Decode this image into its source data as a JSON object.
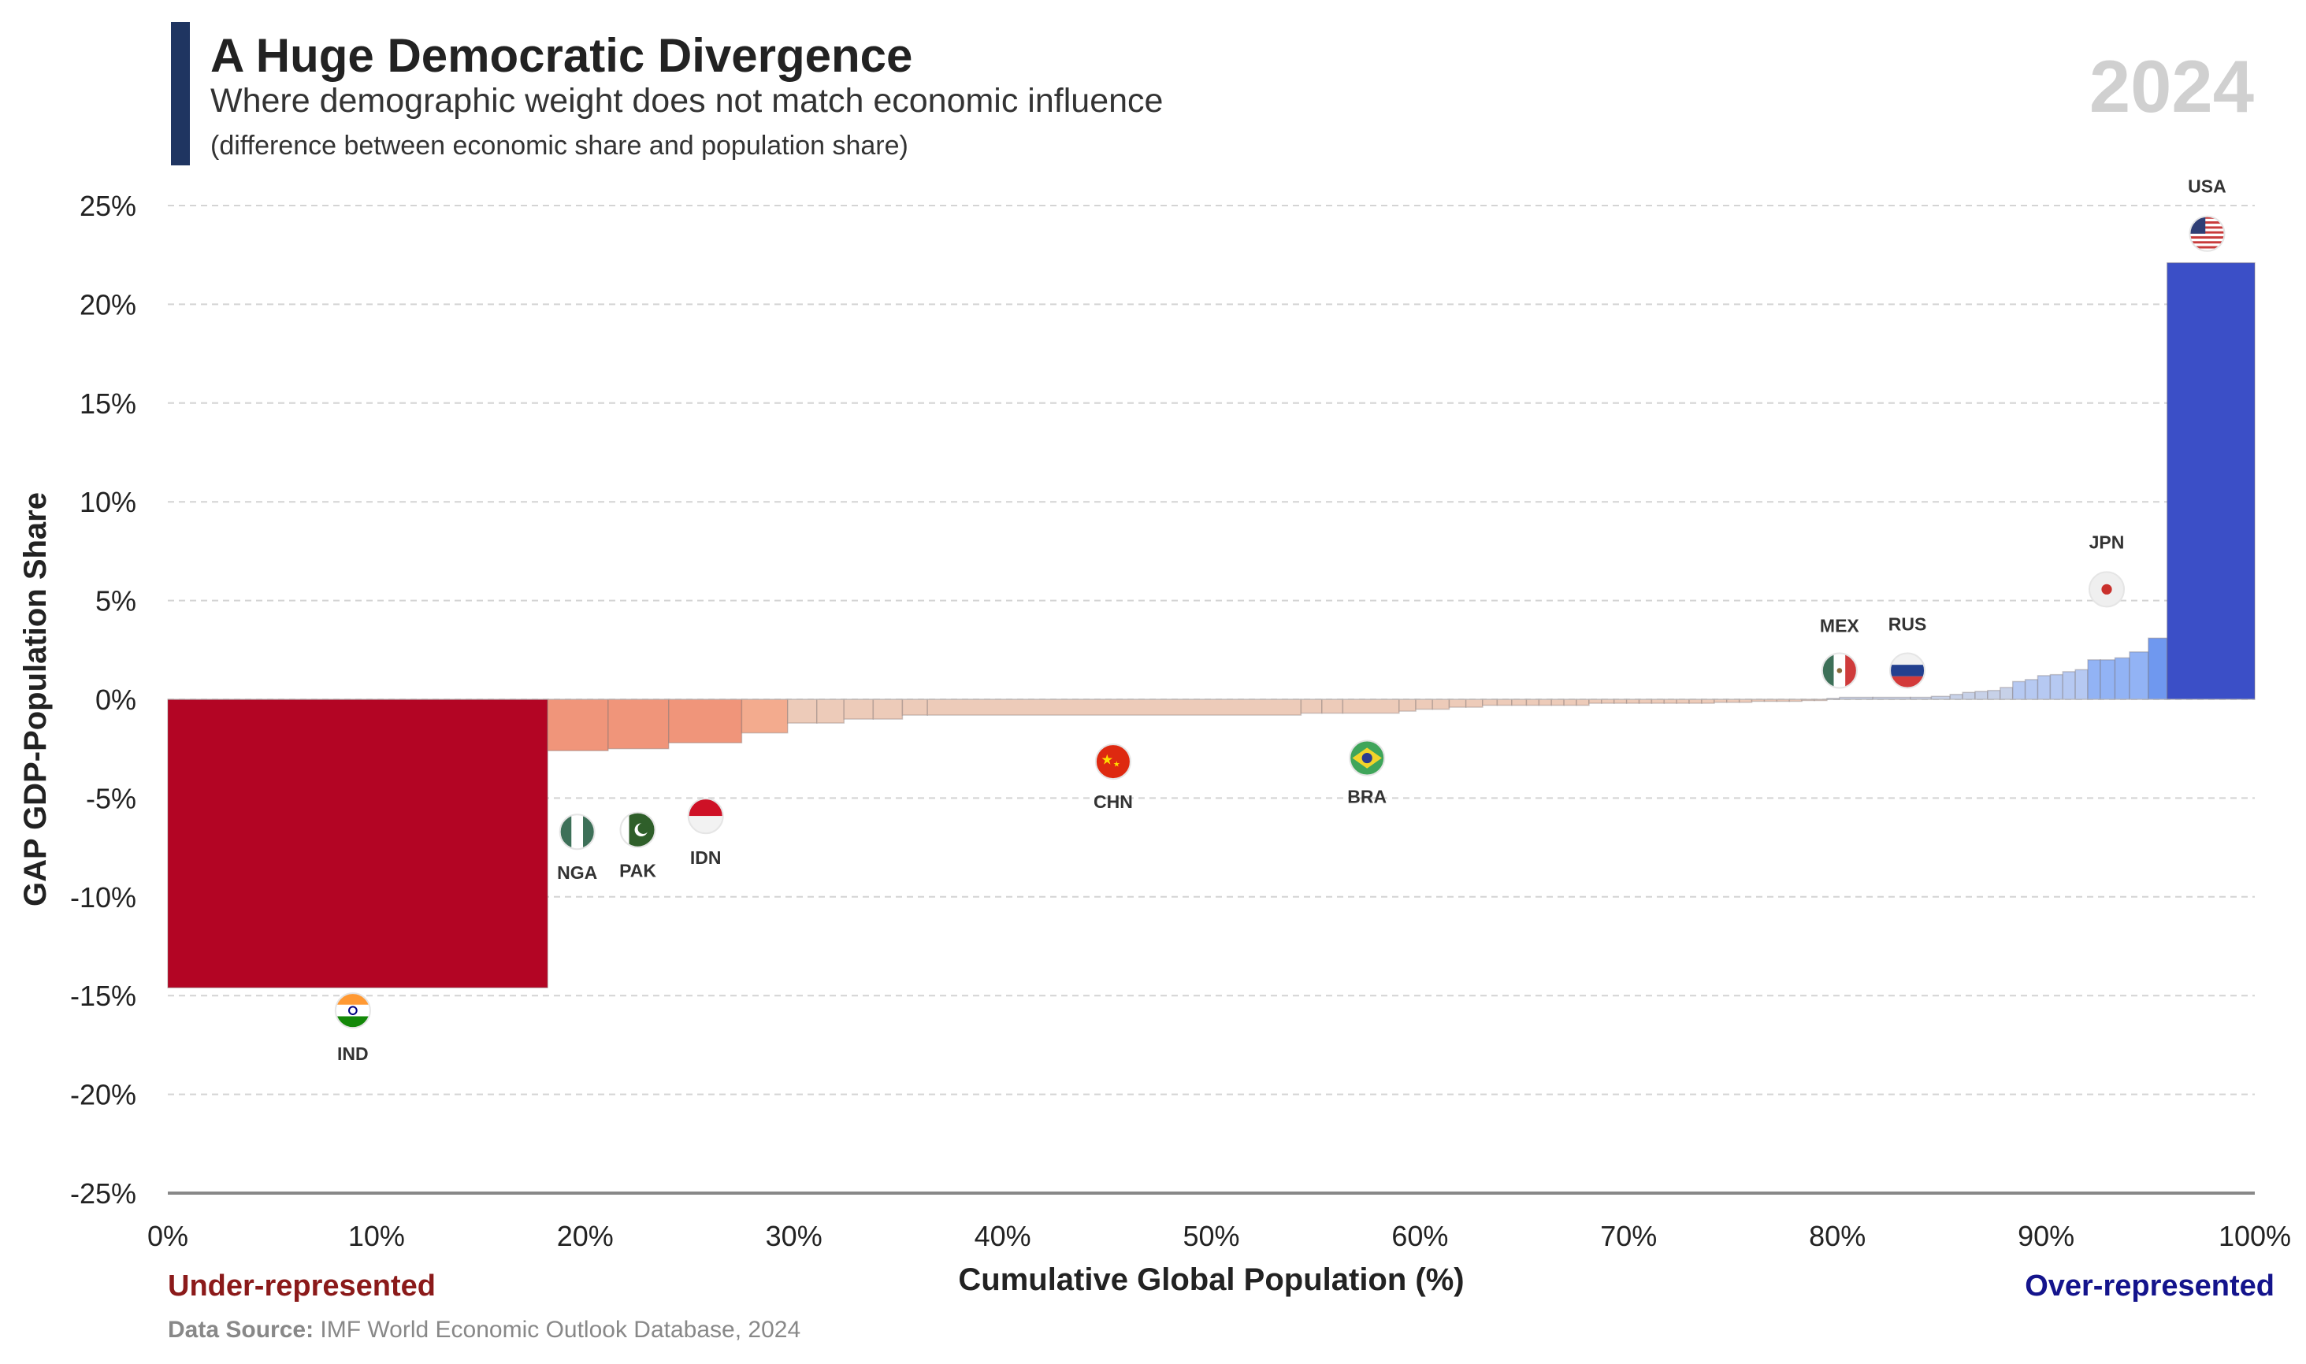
{
  "header": {
    "title": "A Huge Democratic Divergence",
    "subtitle": "Where demographic weight does not match economic influence",
    "note": "(difference between economic share and population share)",
    "year": "2024"
  },
  "footer": {
    "under_label": "Under-represented",
    "over_label": "Over-represented",
    "source_prefix": "Data Source:",
    "source_text": "IMF World Economic Outlook Database, 2024"
  },
  "colors": {
    "negative_strong": "#b30524",
    "negative_mid": "#f0957a",
    "negative_light": "#edcbb9",
    "positive_light": "#c7d1e8",
    "positive_mid": "#92b3f5",
    "positive_strong": "#3b4fc7",
    "accent": "#1f3561"
  },
  "chart_data": {
    "type": "bar",
    "variant": "variable-width (marimekko) bars",
    "xlabel": "Cumulative Global Population (%)",
    "ylabel": "GAP GDP-Population Share",
    "xlim": [
      0,
      100
    ],
    "ylim": [
      -25,
      25
    ],
    "x_ticks": [
      "0%",
      "10%",
      "20%",
      "30%",
      "40%",
      "50%",
      "60%",
      "70%",
      "80%",
      "90%",
      "100%"
    ],
    "y_ticks": [
      "25%",
      "20%",
      "15%",
      "10%",
      "5%",
      "0%",
      "-5%",
      "-10%",
      "-15%",
      "-20%",
      "-25%"
    ],
    "grid": "horizontal dashed",
    "bars": [
      {
        "x0": 0,
        "x1": 18.2,
        "gap": -14.6,
        "label": "IND",
        "flag": "india-flag"
      },
      {
        "x0": 18.2,
        "x1": 21.1,
        "gap": -2.6,
        "label": "NGA",
        "flag": "nigeria-flag"
      },
      {
        "x0": 21.1,
        "x1": 24.0,
        "gap": -2.5,
        "label": "PAK",
        "flag": "pakistan-flag"
      },
      {
        "x0": 24.0,
        "x1": 27.5,
        "gap": -2.2,
        "label": "IDN",
        "flag": "indonesia-flag"
      },
      {
        "x0": 27.5,
        "x1": 29.7,
        "gap": -1.7
      },
      {
        "x0": 29.7,
        "x1": 31.1,
        "gap": -1.2
      },
      {
        "x0": 31.1,
        "x1": 32.4,
        "gap": -1.2
      },
      {
        "x0": 32.4,
        "x1": 33.8,
        "gap": -1.0
      },
      {
        "x0": 33.8,
        "x1": 35.2,
        "gap": -1.0
      },
      {
        "x0": 35.2,
        "x1": 36.4,
        "gap": -0.8
      },
      {
        "x0": 36.4,
        "x1": 54.3,
        "gap": -0.8,
        "label": "CHN",
        "flag": "china-flag"
      },
      {
        "x0": 54.3,
        "x1": 55.3,
        "gap": -0.7
      },
      {
        "x0": 55.3,
        "x1": 56.3,
        "gap": -0.7
      },
      {
        "x0": 56.3,
        "x1": 59.0,
        "gap": -0.7,
        "label": "BRA",
        "flag": "brazil-flag"
      },
      {
        "x0": 59.0,
        "x1": 59.8,
        "gap": -0.6
      },
      {
        "x0": 59.8,
        "x1": 60.6,
        "gap": -0.5
      },
      {
        "x0": 60.6,
        "x1": 61.4,
        "gap": -0.5
      },
      {
        "x0": 61.4,
        "x1": 62.2,
        "gap": -0.4
      },
      {
        "x0": 62.2,
        "x1": 63.0,
        "gap": -0.4
      },
      {
        "x0": 63.0,
        "x1": 63.7,
        "gap": -0.3
      },
      {
        "x0": 63.7,
        "x1": 64.4,
        "gap": -0.3
      },
      {
        "x0": 64.4,
        "x1": 65.1,
        "gap": -0.3
      },
      {
        "x0": 65.1,
        "x1": 65.7,
        "gap": -0.3
      },
      {
        "x0": 65.7,
        "x1": 66.3,
        "gap": -0.3
      },
      {
        "x0": 66.3,
        "x1": 66.9,
        "gap": -0.3
      },
      {
        "x0": 66.9,
        "x1": 67.5,
        "gap": -0.3
      },
      {
        "x0": 67.5,
        "x1": 68.1,
        "gap": -0.3
      },
      {
        "x0": 68.1,
        "x1": 68.7,
        "gap": -0.2
      },
      {
        "x0": 68.7,
        "x1": 69.3,
        "gap": -0.2
      },
      {
        "x0": 69.3,
        "x1": 69.9,
        "gap": -0.2
      },
      {
        "x0": 69.9,
        "x1": 70.5,
        "gap": -0.2
      },
      {
        "x0": 70.5,
        "x1": 71.1,
        "gap": -0.2
      },
      {
        "x0": 71.1,
        "x1": 71.7,
        "gap": -0.2
      },
      {
        "x0": 71.7,
        "x1": 72.3,
        "gap": -0.2
      },
      {
        "x0": 72.3,
        "x1": 72.9,
        "gap": -0.2
      },
      {
        "x0": 72.9,
        "x1": 73.5,
        "gap": -0.2
      },
      {
        "x0": 73.5,
        "x1": 74.1,
        "gap": -0.2
      },
      {
        "x0": 74.1,
        "x1": 74.7,
        "gap": -0.15
      },
      {
        "x0": 74.7,
        "x1": 75.3,
        "gap": -0.15
      },
      {
        "x0": 75.3,
        "x1": 75.9,
        "gap": -0.15
      },
      {
        "x0": 75.9,
        "x1": 76.5,
        "gap": -0.1
      },
      {
        "x0": 76.5,
        "x1": 77.1,
        "gap": -0.1
      },
      {
        "x0": 77.1,
        "x1": 77.7,
        "gap": -0.1
      },
      {
        "x0": 77.7,
        "x1": 78.3,
        "gap": -0.1
      },
      {
        "x0": 78.3,
        "x1": 78.9,
        "gap": -0.05
      },
      {
        "x0": 78.9,
        "x1": 79.5,
        "gap": -0.05
      },
      {
        "x0": 79.5,
        "x1": 80.1,
        "gap": 0.05
      },
      {
        "x0": 80.1,
        "x1": 81.7,
        "gap": 0.1,
        "label": "MEX",
        "flag": "mexico-flag"
      },
      {
        "x0": 81.7,
        "x1": 83.5,
        "gap": 0.1,
        "label": "RUS",
        "flag": "russia-flag"
      },
      {
        "x0": 83.5,
        "x1": 84.5,
        "gap": 0.1
      },
      {
        "x0": 84.5,
        "x1": 85.4,
        "gap": 0.15
      },
      {
        "x0": 85.4,
        "x1": 86.0,
        "gap": 0.25
      },
      {
        "x0": 86.0,
        "x1": 86.6,
        "gap": 0.35
      },
      {
        "x0": 86.6,
        "x1": 87.2,
        "gap": 0.4
      },
      {
        "x0": 87.2,
        "x1": 87.8,
        "gap": 0.45
      },
      {
        "x0": 87.8,
        "x1": 88.4,
        "gap": 0.6
      },
      {
        "x0": 88.4,
        "x1": 89.0,
        "gap": 0.9
      },
      {
        "x0": 89.0,
        "x1": 89.6,
        "gap": 1.0
      },
      {
        "x0": 89.6,
        "x1": 90.2,
        "gap": 1.2
      },
      {
        "x0": 90.2,
        "x1": 90.8,
        "gap": 1.25
      },
      {
        "x0": 90.8,
        "x1": 91.4,
        "gap": 1.4
      },
      {
        "x0": 91.4,
        "x1": 92.0,
        "gap": 1.5
      },
      {
        "x0": 92.0,
        "x1": 92.6,
        "gap": 2.0
      },
      {
        "x0": 92.6,
        "x1": 93.3,
        "gap": 2.0
      },
      {
        "x0": 93.3,
        "x1": 94.0,
        "gap": 2.1,
        "label": "JPN",
        "flag": "japan-flag"
      },
      {
        "x0": 94.0,
        "x1": 94.9,
        "gap": 2.4
      },
      {
        "x0": 94.9,
        "x1": 95.8,
        "gap": 3.1
      },
      {
        "x0": 95.8,
        "x1": 100,
        "gap": 22.1,
        "label": "USA",
        "flag": "usa-flag"
      }
    ]
  }
}
